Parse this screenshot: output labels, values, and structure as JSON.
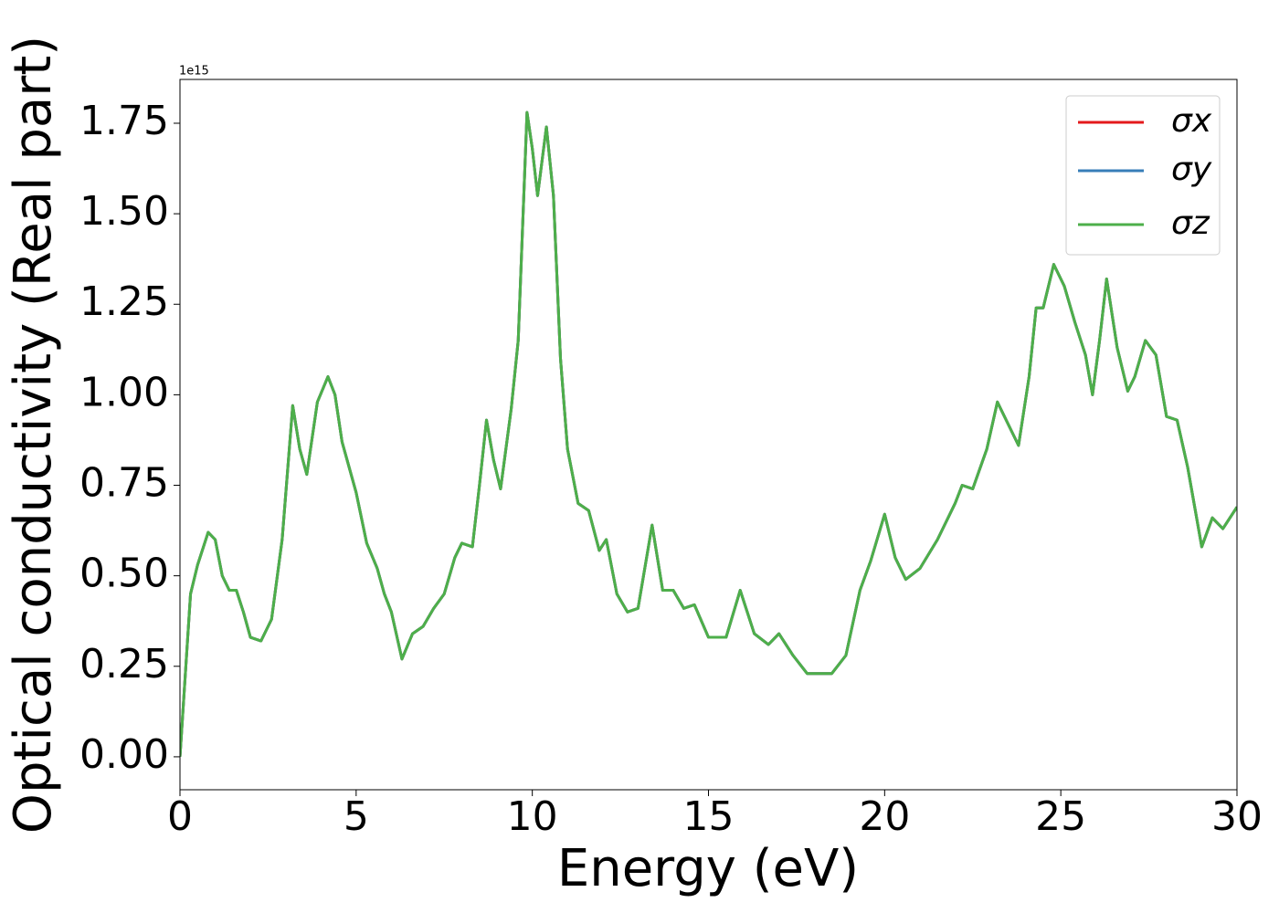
{
  "chart_data": {
    "type": "line",
    "xlabel": "Energy (eV)",
    "ylabel": "Optical conductivity (Real part)",
    "y_offset_text": "1e15",
    "xlim": [
      0,
      30
    ],
    "xticks": [
      0,
      5,
      10,
      15,
      20,
      25,
      30
    ],
    "ylim": [
      -0.091,
      1.871
    ],
    "yticks": [
      {
        "value": 0,
        "label": "0.00"
      },
      0.25,
      {
        "value": 0.5,
        "label": "0.50"
      },
      0.75,
      {
        "value": 1,
        "label": "1.00"
      },
      1.25,
      {
        "value": 1.5,
        "label": "1.50"
      },
      1.75
    ],
    "legend": "upper right",
    "grid": false,
    "x": [
      0,
      0.1,
      0.2,
      0.3,
      0.5,
      0.8,
      1.0,
      1.2,
      1.4,
      1.6,
      1.8,
      2.0,
      2.3,
      2.6,
      2.9,
      3.2,
      3.4,
      3.6,
      3.9,
      4.2,
      4.4,
      4.6,
      5.0,
      5.3,
      5.6,
      5.8,
      6.0,
      6.3,
      6.6,
      6.9,
      7.2,
      7.5,
      7.8,
      8.0,
      8.3,
      8.5,
      8.7,
      8.9,
      9.1,
      9.4,
      9.6,
      9.85,
      10.0,
      10.15,
      10.4,
      10.6,
      10.8,
      11.0,
      11.3,
      11.6,
      11.9,
      12.1,
      12.4,
      12.7,
      13.0,
      13.4,
      13.7,
      14.0,
      14.3,
      14.6,
      15.0,
      15.5,
      15.9,
      16.3,
      16.7,
      17.0,
      17.4,
      17.8,
      18.2,
      18.5,
      18.9,
      19.3,
      19.6,
      20.0,
      20.3,
      20.6,
      21.0,
      21.5,
      22.0,
      22.2,
      22.5,
      22.9,
      23.2,
      23.5,
      23.8,
      24.1,
      24.3,
      24.5,
      24.8,
      25.1,
      25.4,
      25.7,
      25.9,
      26.1,
      26.3,
      26.6,
      26.9,
      27.1,
      27.4,
      27.7,
      28.0,
      28.3,
      28.6,
      29.0,
      29.3,
      29.6,
      30.0
    ],
    "series": [
      {
        "name": "σx",
        "color": "#e41a1c",
        "values": [
          0,
          0.15,
          0.3,
          0.45,
          0.53,
          0.62,
          0.6,
          0.5,
          0.46,
          0.46,
          0.4,
          0.33,
          0.32,
          0.38,
          0.6,
          0.97,
          0.85,
          0.78,
          0.98,
          1.05,
          1.0,
          0.87,
          0.73,
          0.59,
          0.52,
          0.45,
          0.4,
          0.27,
          0.34,
          0.36,
          0.41,
          0.45,
          0.55,
          0.59,
          0.58,
          0.75,
          0.93,
          0.82,
          0.74,
          0.96,
          1.15,
          1.78,
          1.68,
          1.55,
          1.74,
          1.55,
          1.1,
          0.85,
          0.7,
          0.68,
          0.57,
          0.6,
          0.45,
          0.4,
          0.41,
          0.64,
          0.46,
          0.46,
          0.41,
          0.42,
          0.33,
          0.33,
          0.46,
          0.34,
          0.31,
          0.34,
          0.28,
          0.23,
          0.23,
          0.23,
          0.28,
          0.46,
          0.54,
          0.67,
          0.55,
          0.49,
          0.52,
          0.6,
          0.7,
          0.75,
          0.74,
          0.85,
          0.98,
          0.92,
          0.86,
          1.05,
          1.24,
          1.24,
          1.36,
          1.3,
          1.2,
          1.11,
          1.0,
          1.15,
          1.32,
          1.13,
          1.01,
          1.05,
          1.15,
          1.11,
          0.94,
          0.93,
          0.8,
          0.58,
          0.66,
          0.63,
          0.69
        ]
      },
      {
        "name": "σy",
        "color": "#377eb8",
        "values": [
          0,
          0.15,
          0.3,
          0.45,
          0.53,
          0.62,
          0.6,
          0.5,
          0.46,
          0.46,
          0.4,
          0.33,
          0.32,
          0.38,
          0.6,
          0.97,
          0.85,
          0.78,
          0.98,
          1.05,
          1.0,
          0.87,
          0.73,
          0.59,
          0.52,
          0.45,
          0.4,
          0.27,
          0.34,
          0.36,
          0.41,
          0.45,
          0.55,
          0.59,
          0.58,
          0.75,
          0.93,
          0.82,
          0.74,
          0.96,
          1.15,
          1.78,
          1.68,
          1.55,
          1.74,
          1.55,
          1.1,
          0.85,
          0.7,
          0.68,
          0.57,
          0.6,
          0.45,
          0.4,
          0.41,
          0.64,
          0.46,
          0.46,
          0.41,
          0.42,
          0.33,
          0.33,
          0.46,
          0.34,
          0.31,
          0.34,
          0.28,
          0.23,
          0.23,
          0.23,
          0.28,
          0.46,
          0.54,
          0.67,
          0.55,
          0.49,
          0.52,
          0.6,
          0.7,
          0.75,
          0.74,
          0.85,
          0.98,
          0.92,
          0.86,
          1.05,
          1.24,
          1.24,
          1.36,
          1.3,
          1.2,
          1.11,
          1.0,
          1.15,
          1.32,
          1.13,
          1.01,
          1.05,
          1.15,
          1.11,
          0.94,
          0.93,
          0.8,
          0.58,
          0.66,
          0.63,
          0.69
        ]
      },
      {
        "name": "σz",
        "color": "#4daf4a",
        "values": [
          0,
          0.15,
          0.3,
          0.45,
          0.53,
          0.62,
          0.6,
          0.5,
          0.46,
          0.46,
          0.4,
          0.33,
          0.32,
          0.38,
          0.6,
          0.97,
          0.85,
          0.78,
          0.98,
          1.05,
          1.0,
          0.87,
          0.73,
          0.59,
          0.52,
          0.45,
          0.4,
          0.27,
          0.34,
          0.36,
          0.41,
          0.45,
          0.55,
          0.59,
          0.58,
          0.75,
          0.93,
          0.82,
          0.74,
          0.96,
          1.15,
          1.78,
          1.68,
          1.55,
          1.74,
          1.55,
          1.1,
          0.85,
          0.7,
          0.68,
          0.57,
          0.6,
          0.45,
          0.4,
          0.41,
          0.64,
          0.46,
          0.46,
          0.41,
          0.42,
          0.33,
          0.33,
          0.46,
          0.34,
          0.31,
          0.34,
          0.28,
          0.23,
          0.23,
          0.23,
          0.28,
          0.46,
          0.54,
          0.67,
          0.55,
          0.49,
          0.52,
          0.6,
          0.7,
          0.75,
          0.74,
          0.85,
          0.98,
          0.92,
          0.86,
          1.05,
          1.24,
          1.24,
          1.36,
          1.3,
          1.2,
          1.11,
          1.0,
          1.15,
          1.32,
          1.13,
          1.01,
          1.05,
          1.15,
          1.11,
          0.94,
          0.93,
          0.8,
          0.58,
          0.66,
          0.63,
          0.69
        ]
      }
    ]
  }
}
